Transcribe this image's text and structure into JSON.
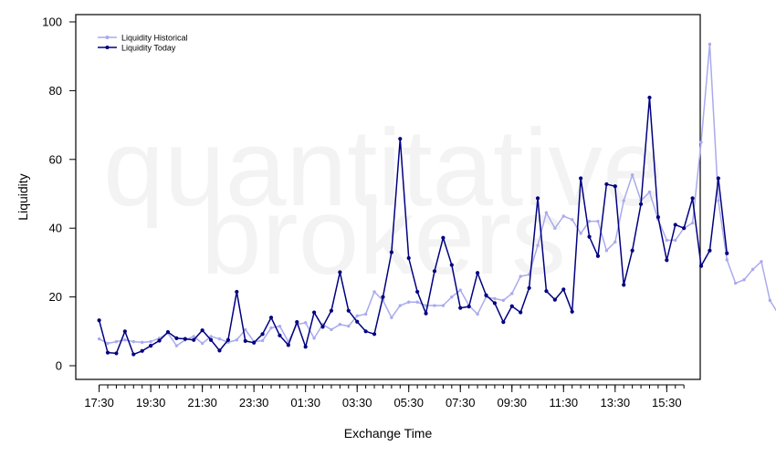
{
  "watermark": {
    "line1": "quantitative",
    "line2": "brokers"
  },
  "chart_data": {
    "type": "line",
    "title": "",
    "xlabel": "Exchange Time",
    "ylabel": "Liquidity",
    "ylim": [
      0,
      100
    ],
    "yticks": [
      0,
      20,
      40,
      60,
      80,
      100
    ],
    "x_labels": [
      "17:30",
      "19:30",
      "21:30",
      "23:30",
      "01:30",
      "03:30",
      "05:30",
      "07:30",
      "09:30",
      "11:30",
      "13:30",
      "15:30"
    ],
    "x_range": [
      0,
      68
    ],
    "grid": false,
    "legend_position": "top-left",
    "colors": {
      "historical": "#aaaaee",
      "today": "#000080"
    },
    "series": [
      {
        "name": "Liquidity Historical",
        "values": [
          7.8,
          6.5,
          7,
          7.5,
          7,
          6.8,
          7,
          8,
          9.5,
          5.8,
          7.5,
          8.5,
          6.5,
          8.5,
          7.8,
          6.8,
          7.5,
          10.5,
          7,
          7.3,
          11,
          11.5,
          7,
          12,
          12.5,
          8,
          12,
          10.5,
          12,
          11.5,
          14.5,
          15,
          21.5,
          19,
          14,
          17.5,
          18.5,
          18.5,
          17.5,
          17.5,
          17.5,
          20,
          22,
          17.5,
          15,
          20,
          19.5,
          19,
          21,
          26,
          26.5,
          35,
          44.5,
          40,
          43.5,
          42.5,
          38.5,
          42,
          42,
          33.5,
          36,
          48,
          55.5,
          48,
          50.5,
          42.5,
          36.5,
          36.5,
          40,
          41.5,
          65,
          93.5,
          48,
          30.8,
          24,
          25,
          28,
          30.3,
          19,
          15,
          16.3,
          18.3
        ]
      },
      {
        "name": "Liquidity Today",
        "values": [
          13.2,
          3.8,
          3.6,
          10,
          3.3,
          4.3,
          5.8,
          7.3,
          9.8,
          8,
          7.8,
          7.5,
          10.3,
          7.5,
          4.4,
          7.5,
          21.5,
          7.2,
          6.7,
          9.2,
          14,
          8.8,
          6,
          12.7,
          5.5,
          15.5,
          11.3,
          16,
          27.2,
          16,
          12.8,
          10,
          9.2,
          20,
          33,
          66,
          31.3,
          21.5,
          15.2,
          27.5,
          37.2,
          29.3,
          16.8,
          17.2,
          27,
          20.5,
          18.2,
          12.7,
          17.3,
          15.5,
          22.6,
          48.7,
          21.7,
          19.2,
          22.2,
          15.7,
          54.5,
          37.5,
          31.9,
          52.8,
          52.2,
          23.5,
          33.5,
          47,
          78,
          43.2,
          30.7,
          41,
          40,
          48.7,
          29,
          33.5,
          54.5,
          32.7
        ]
      }
    ]
  }
}
